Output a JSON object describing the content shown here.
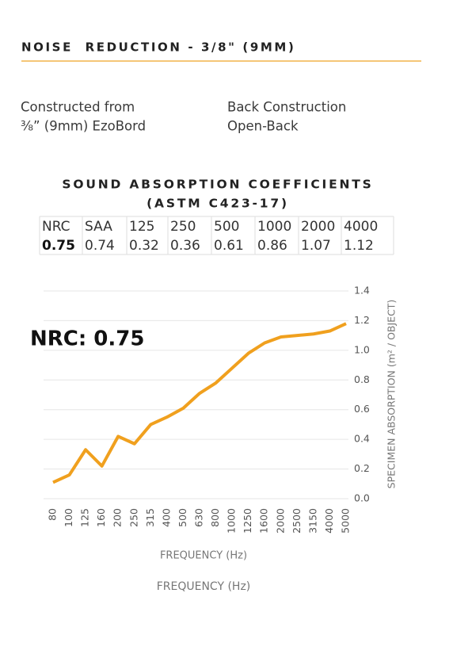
{
  "header": {
    "title": "NOISE  REDUCTION - 3/8\" (9MM)"
  },
  "info": [
    {
      "label": "Constructed from",
      "value": "⅜” (9mm) EzoBord"
    },
    {
      "label": "Back Construction",
      "value": "Open-Back"
    }
  ],
  "table": {
    "title": "SOUND ABSORPTION COEFFICIENTS",
    "subtitle": "(ASTM C423-17)",
    "rows": [
      [
        "NRC",
        "SAA",
        "125",
        "250",
        "500",
        "1000",
        "2000",
        "4000"
      ],
      [
        "0.75",
        "0.74",
        "0.32",
        "0.36",
        "0.61",
        "0.86",
        "1.07",
        "1.12"
      ]
    ]
  },
  "chart_data": {
    "type": "line",
    "annotation": "NRC: 0.75",
    "x_label": "FREQUENCY (Hz)",
    "x_label_repeat": "FREQUENCY (Hz)",
    "y_label": "SPECIMEN ABSORPTION (m² / OBJECT)",
    "categories": [
      "80",
      "100",
      "125",
      "160",
      "200",
      "250",
      "315",
      "400",
      "500",
      "630",
      "800",
      "1000",
      "1250",
      "1600",
      "2000",
      "2500",
      "3150",
      "4000",
      "5000"
    ],
    "values": [
      0.11,
      0.16,
      0.33,
      0.22,
      0.42,
      0.37,
      0.5,
      0.55,
      0.61,
      0.71,
      0.78,
      0.88,
      0.98,
      1.05,
      1.09,
      1.1,
      1.11,
      1.13,
      1.18
    ],
    "color": "#f0a01e",
    "ylim": [
      0,
      1.4
    ],
    "yticks": [
      {
        "value": 0,
        "label": "0.0"
      },
      0.2,
      0.4,
      0.6,
      0.8,
      {
        "value": 1,
        "label": "1.0"
      },
      1.2,
      1.4
    ],
    "grid": true
  }
}
